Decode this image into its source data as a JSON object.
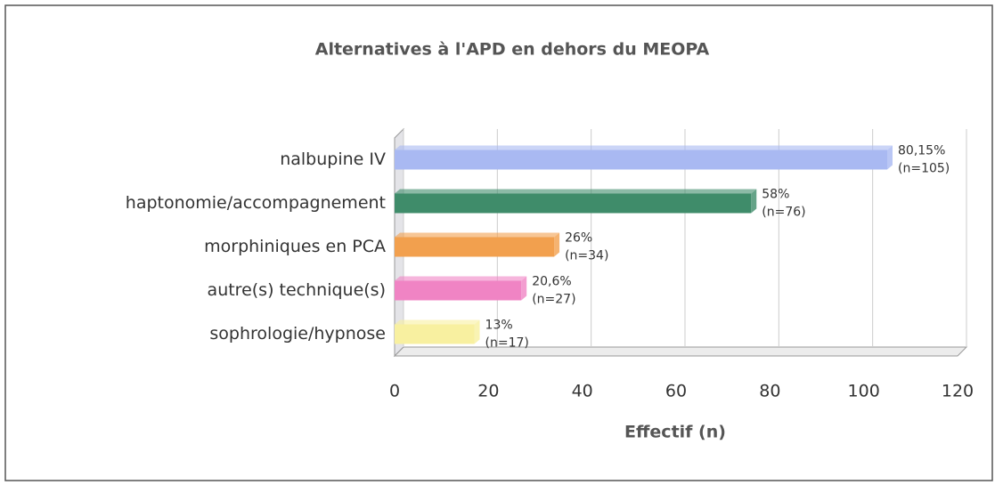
{
  "chart_data": {
    "type": "bar",
    "orientation": "horizontal",
    "title": "Alternatives à l'APD en dehors du MEOPA",
    "x_label": "Effectif (n)",
    "categories": [
      "nalbupine IV",
      "haptonomie/accompagnement",
      "morphiniques en PCA",
      "autre(s) technique(s)",
      "sophrologie/hypnose"
    ],
    "values": [
      105,
      76,
      34,
      27,
      17
    ],
    "value_labels": [
      "(n=105)",
      "(n=76)",
      "(n=34)",
      "(n=27)",
      "(n=17)"
    ],
    "percent_labels": [
      "80,15%",
      "58%",
      "26%",
      "20,6%",
      "13%"
    ],
    "colors": [
      "#a9b9f2",
      "#3f8c6a",
      "#f2a04e",
      "#f084c4",
      "#f8f0a0"
    ],
    "xlim": [
      0,
      120
    ],
    "xticks": [
      0,
      20,
      40,
      60,
      80,
      100,
      120
    ],
    "grid": true
  }
}
